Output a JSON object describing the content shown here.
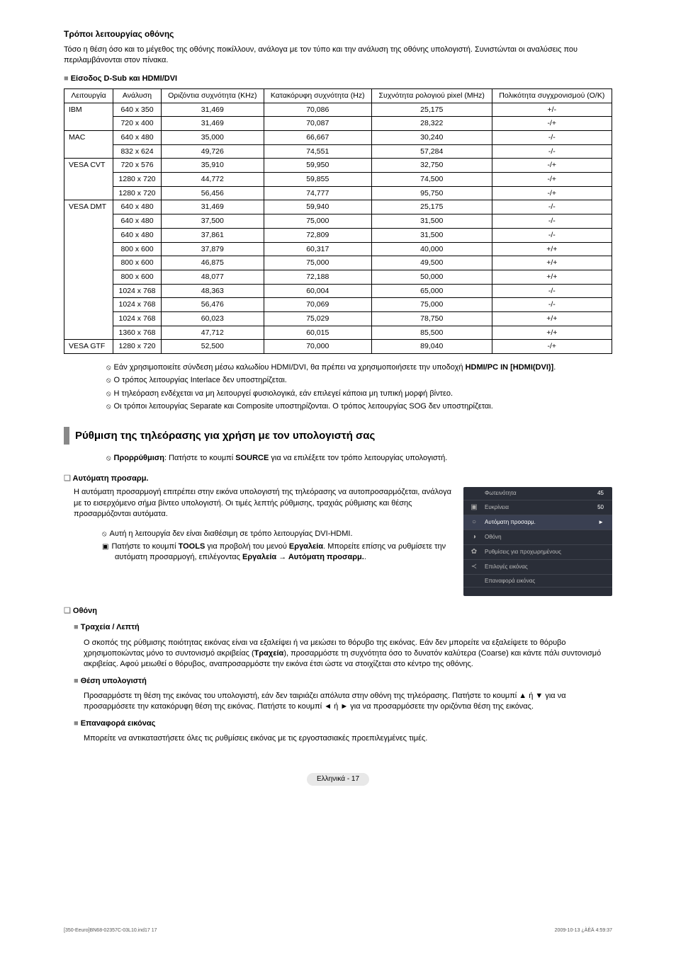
{
  "header": {
    "title": "Τρόποι λειτουργίας οθόνης",
    "intro": "Τόσο η θέση όσο και το μέγεθος της οθόνης ποικίλλουν, ανάλογα με τον τύπο και την ανάλυση της οθόνης υπολογιστή. Συνιστώνται οι αναλύσεις που περιλαμβάνονται στον πίνακα.",
    "inputLabel": "Είσοδος D-Sub και HDMI/DVI"
  },
  "table": {
    "columns": [
      "Λειτουργία",
      "Ανάλυση",
      "Οριζόντια συχνότητα (KHz)",
      "Κατακόρυφη συχνότητα (Hz)",
      "Συχνότητα ρολογιού pixel (MHz)",
      "Πολικότητα συγχρονισμού (O/K)"
    ],
    "groups": [
      {
        "mode": "IBM",
        "rows": [
          [
            "640 x 350",
            "31,469",
            "70,086",
            "25,175",
            "+/-"
          ],
          [
            "720 x 400",
            "31,469",
            "70,087",
            "28,322",
            "-/+"
          ]
        ]
      },
      {
        "mode": "MAC",
        "rows": [
          [
            "640 x 480",
            "35,000",
            "66,667",
            "30,240",
            "-/-"
          ],
          [
            "832 x 624",
            "49,726",
            "74,551",
            "57,284",
            "-/-"
          ]
        ]
      },
      {
        "mode": "VESA CVT",
        "rows": [
          [
            "720 x 576",
            "35,910",
            "59,950",
            "32,750",
            "-/+"
          ],
          [
            "1280 x 720",
            "44,772",
            "59,855",
            "74,500",
            "-/+"
          ],
          [
            "1280 x 720",
            "56,456",
            "74,777",
            "95,750",
            "-/+"
          ]
        ]
      },
      {
        "mode": "VESA DMT",
        "rows": [
          [
            "640 x 480",
            "31,469",
            "59,940",
            "25,175",
            "-/-"
          ],
          [
            "640 x 480",
            "37,500",
            "75,000",
            "31,500",
            "-/-"
          ],
          [
            "640 x 480",
            "37,861",
            "72,809",
            "31,500",
            "-/-"
          ],
          [
            "800 x 600",
            "37,879",
            "60,317",
            "40,000",
            "+/+"
          ],
          [
            "800 x 600",
            "46,875",
            "75,000",
            "49,500",
            "+/+"
          ],
          [
            "800 x 600",
            "48,077",
            "72,188",
            "50,000",
            "+/+"
          ],
          [
            "1024 x 768",
            "48,363",
            "60,004",
            "65,000",
            "-/-"
          ],
          [
            "1024 x 768",
            "56,476",
            "70,069",
            "75,000",
            "-/-"
          ],
          [
            "1024 x 768",
            "60,023",
            "75,029",
            "78,750",
            "+/+"
          ],
          [
            "1360 x 768",
            "47,712",
            "60,015",
            "85,500",
            "+/+"
          ]
        ]
      },
      {
        "mode": "VESA GTF",
        "rows": [
          [
            "1280 x 720",
            "52,500",
            "70,000",
            "89,040",
            "-/+"
          ]
        ]
      }
    ]
  },
  "notes": [
    "Εάν χρησιμοποιείτε σύνδεση μέσω καλωδίου HDMI/DVI, θα πρέπει να χρησιμοποιήσετε την υποδοχή HDMI/PC IN [HDMI(DVI)].",
    "Ο τρόπος λειτουργίας Interlace δεν υποστηρίζεται.",
    "Η τηλεόραση ενδέχεται να μη λειτουργεί φυσιολογικά, εάν επιλεγεί κάποια μη τυπική μορφή βίντεο.",
    "Οι τρόποι λειτουργίας Separate και Composite υποστηρίζονται. Ο τρόπος λειτουργίας SOG δεν υποστηρίζεται."
  ],
  "setup": {
    "heading": "Ρύθμιση της τηλεόρασης για χρήση με τον υπολογιστή σας",
    "preset": "Προρρύθμιση: Πατήστε το κουμπί SOURCE για να επιλέξετε τον τρόπο λειτουργίας υπολογιστή.",
    "auto": {
      "title": "Αυτόματη προσαρμ.",
      "body": "Η αυτόματη προσαρμογή επιτρέπει στην εικόνα υπολογιστή της τηλεόρασης να αυτοπροσαρμόζεται, ανάλογα με το εισερχόμενο σήμα βίντεο υπολογιστή. Οι τιμές λεπτής ρύθμισης, τραχιάς ρύθμισης και θέσης προσαρμόζονται αυτόματα.",
      "note1": "Αυτή η λειτουργία δεν είναι διαθέσιμη σε τρόπο λειτουργίας DVI-HDMI.",
      "note2": "Πατήστε το κουμπί TOOLS για προβολή του μενού Εργαλεία. Μπορείτε επίσης να ρυθμίσετε την αυτόματη προσαρμογή, επιλέγοντας Εργαλεία → Αυτόματη προσαρμ.."
    },
    "osd": {
      "items": [
        {
          "label": "Φωτεινότητα",
          "val": "45"
        },
        {
          "label": "Ευκρίνεια",
          "val": "50"
        },
        {
          "label": "Αυτόματη προσαρμ.",
          "val": "►",
          "sel": true
        },
        {
          "label": "Οθόνη",
          "val": ""
        },
        {
          "label": "Ρυθμίσεις για προχωρημένους",
          "val": ""
        },
        {
          "label": "Επιλογές εικόνας",
          "val": ""
        },
        {
          "label": "Επαναφορά εικόνας",
          "val": ""
        }
      ]
    },
    "screen": {
      "title": "Οθόνη",
      "coarse": {
        "title": "Τραχεία / Λεπτή",
        "body": "Ο σκοπός της ρύθμισης ποιότητας εικόνας είναι να εξαλείψει ή να μειώσει το θόρυβο της εικόνας. Εάν δεν μπορείτε να εξαλείψετε το θόρυβο χρησιμοποιώντας μόνο το συντονισμό ακριβείας (Τραχεία), προσαρμόστε τη συχνότητα όσο το δυνατόν καλύτερα (Coarse) και κάντε πάλι συντονισμό ακριβείας. Αφού μειωθεί ο θόρυβος, αναπροσαρμόστε την εικόνα έτσι ώστε να στοιχίζεται στο κέντρο της οθόνης."
      },
      "pos": {
        "title": "Θέση υπολογιστή",
        "body": "Προσαρμόστε τη θέση της εικόνας του υπολογιστή, εάν δεν ταιριάζει απόλυτα στην οθόνη της τηλεόρασης. Πατήστε το κουμπί ▲ ή ▼ για να προσαρμόσετε την κατακόρυφη θέση της εικόνας. Πατήστε το κουμπί ◄ ή ► για να προσαρμόσετε την οριζόντια θέση της εικόνας."
      },
      "reset": {
        "title": "Επαναφορά εικόνας",
        "body": "Μπορείτε να αντικαταστήσετε όλες τις ρυθμίσεις εικόνας με τις εργοστασιακές προεπιλεγμένες τιμές."
      }
    }
  },
  "pageLabel": "Ελληνικά - 17",
  "footer": {
    "left": "[350-Eeuro]BN68-02357C-03L10.ind17   17",
    "right": "2009-10-13   ¿ÀÈÄ 4:59:37"
  }
}
